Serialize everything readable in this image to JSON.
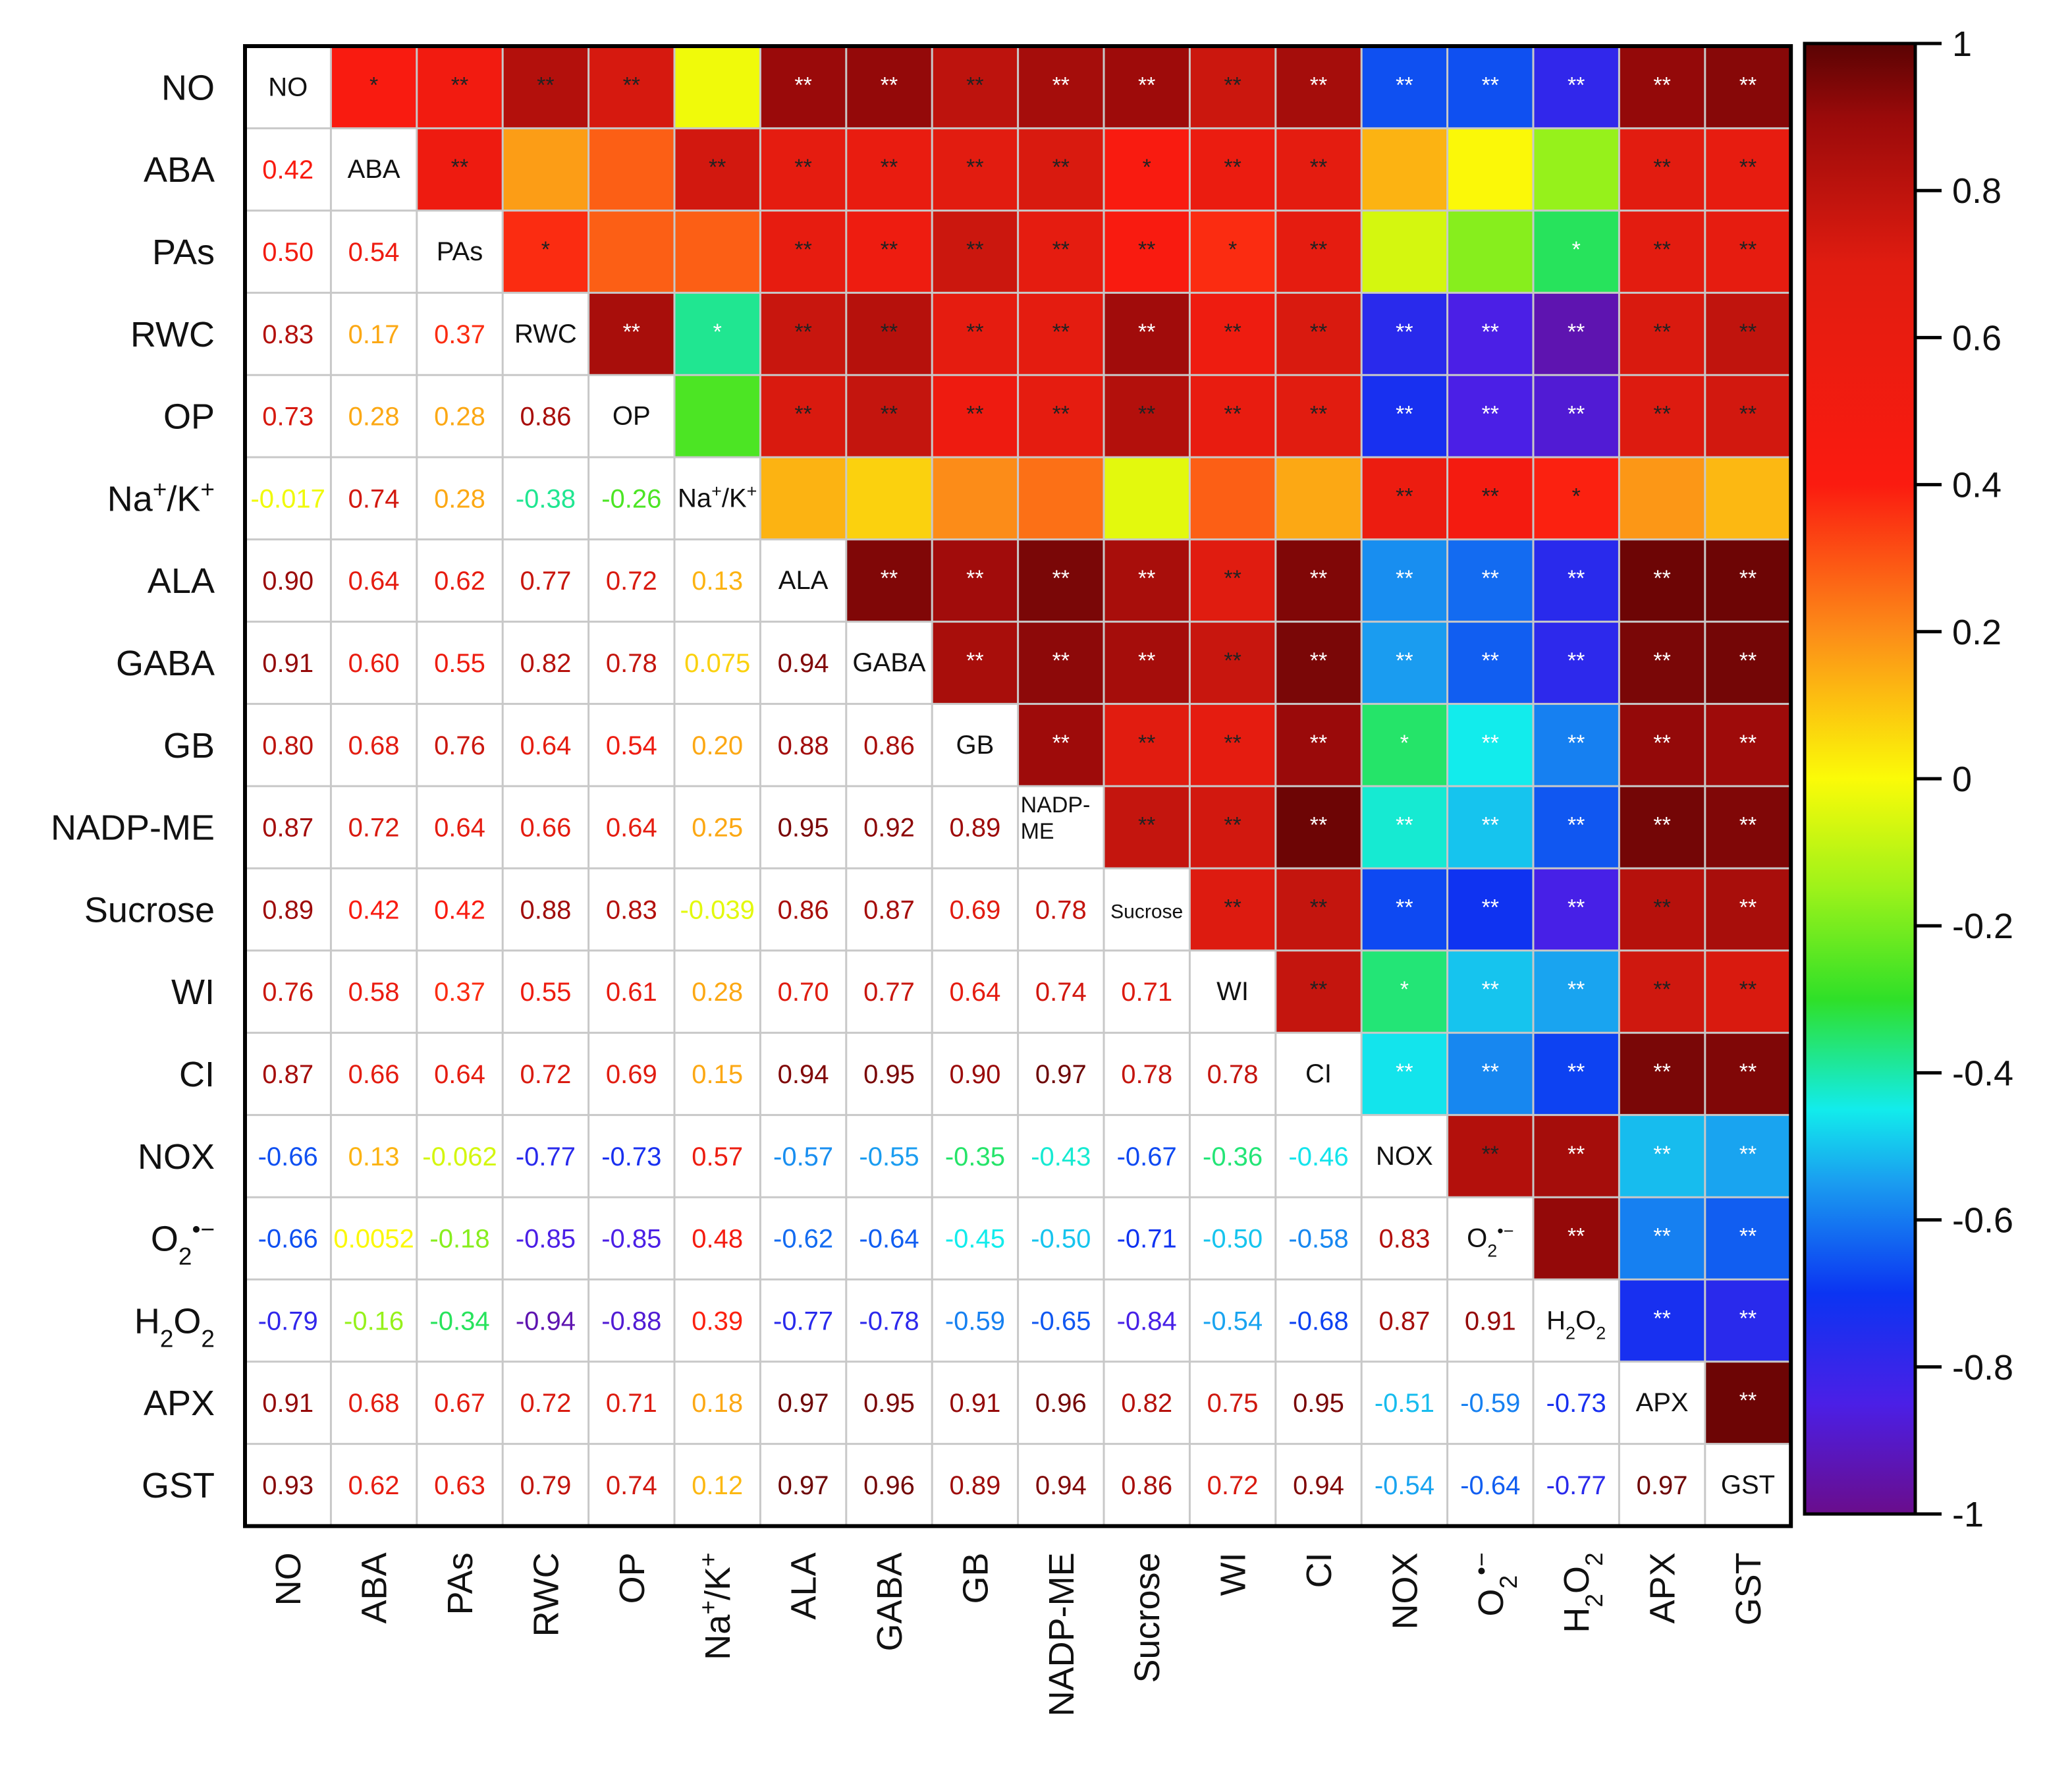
{
  "chart_data": {
    "type": "heatmap",
    "variables": [
      {
        "id": "NO",
        "base": "NO",
        "parts": [
          {
            "t": "NO"
          }
        ]
      },
      {
        "id": "ABA",
        "base": "ABA",
        "parts": [
          {
            "t": "ABA"
          }
        ]
      },
      {
        "id": "PAs",
        "base": "PAs",
        "parts": [
          {
            "t": "PAs"
          }
        ]
      },
      {
        "id": "RWC",
        "base": "RWC",
        "parts": [
          {
            "t": "RWC"
          }
        ]
      },
      {
        "id": "OP",
        "base": "OP",
        "parts": [
          {
            "t": "OP"
          }
        ]
      },
      {
        "id": "Na+/K+",
        "base": "Na",
        "parts": [
          {
            "t": "Na"
          },
          {
            "t": "+",
            "s": "sup"
          },
          {
            "t": "/K"
          },
          {
            "t": "+",
            "s": "sup"
          }
        ]
      },
      {
        "id": "ALA",
        "base": "ALA",
        "parts": [
          {
            "t": "ALA"
          }
        ]
      },
      {
        "id": "GABA",
        "base": "GABA",
        "parts": [
          {
            "t": "GABA"
          }
        ]
      },
      {
        "id": "GB",
        "base": "GB",
        "parts": [
          {
            "t": "GB"
          }
        ]
      },
      {
        "id": "NADP-ME",
        "base": "NADP-ME",
        "parts": [
          {
            "t": "NADP-ME"
          }
        ],
        "diag_lines": [
          "NADP-",
          "ME"
        ]
      },
      {
        "id": "Sucrose",
        "base": "Sucrose",
        "parts": [
          {
            "t": "Sucrose"
          }
        ],
        "diag_small": true
      },
      {
        "id": "WI",
        "base": "WI",
        "parts": [
          {
            "t": "WI"
          }
        ]
      },
      {
        "id": "CI",
        "base": "CI",
        "parts": [
          {
            "t": "CI"
          }
        ]
      },
      {
        "id": "NOX",
        "base": "NOX",
        "parts": [
          {
            "t": "NOX"
          }
        ]
      },
      {
        "id": "O2•−",
        "base": "O",
        "parts": [
          {
            "t": "O"
          },
          {
            "t": "2",
            "s": "sub"
          },
          {
            "t": "•−",
            "s": "sup"
          }
        ]
      },
      {
        "id": "H2O2",
        "base": "H",
        "parts": [
          {
            "t": "H"
          },
          {
            "t": "2",
            "s": "sub"
          },
          {
            "t": "O"
          },
          {
            "t": "2",
            "s": "sub"
          }
        ]
      },
      {
        "id": "APX",
        "base": "APX",
        "parts": [
          {
            "t": "APX"
          }
        ]
      },
      {
        "id": "GST",
        "base": "GST",
        "parts": [
          {
            "t": "GST"
          }
        ]
      }
    ],
    "lower_values": [
      [],
      [
        "0.42"
      ],
      [
        "0.50",
        "0.54"
      ],
      [
        "0.83",
        "0.17",
        "0.37"
      ],
      [
        "0.73",
        "0.28",
        "0.28",
        "0.86"
      ],
      [
        "-0.017",
        "0.74",
        "0.28",
        "-0.38",
        "-0.26"
      ],
      [
        "0.90",
        "0.64",
        "0.62",
        "0.77",
        "0.72",
        "0.13"
      ],
      [
        "0.91",
        "0.60",
        "0.55",
        "0.82",
        "0.78",
        "0.075",
        "0.94"
      ],
      [
        "0.80",
        "0.68",
        "0.76",
        "0.64",
        "0.54",
        "0.20",
        "0.88",
        "0.86"
      ],
      [
        "0.87",
        "0.72",
        "0.64",
        "0.66",
        "0.64",
        "0.25",
        "0.95",
        "0.92",
        "0.89"
      ],
      [
        "0.89",
        "0.42",
        "0.42",
        "0.88",
        "0.83",
        "-0.039",
        "0.86",
        "0.87",
        "0.69",
        "0.78"
      ],
      [
        "0.76",
        "0.58",
        "0.37",
        "0.55",
        "0.61",
        "0.28",
        "0.70",
        "0.77",
        "0.64",
        "0.74",
        "0.71"
      ],
      [
        "0.87",
        "0.66",
        "0.64",
        "0.72",
        "0.69",
        "0.15",
        "0.94",
        "0.95",
        "0.90",
        "0.97",
        "0.78",
        "0.78"
      ],
      [
        "-0.66",
        "0.13",
        "-0.062",
        "-0.77",
        "-0.73",
        "0.57",
        "-0.57",
        "-0.55",
        "-0.35",
        "-0.43",
        "-0.67",
        "-0.36",
        "-0.46"
      ],
      [
        "-0.66",
        "0.0052",
        "-0.18",
        "-0.85",
        "-0.85",
        "0.48",
        "-0.62",
        "-0.64",
        "-0.45",
        "-0.50",
        "-0.71",
        "-0.50",
        "-0.58",
        "0.83"
      ],
      [
        "-0.79",
        "-0.16",
        "-0.34",
        "-0.94",
        "-0.88",
        "0.39",
        "-0.77",
        "-0.78",
        "-0.59",
        "-0.65",
        "-0.84",
        "-0.54",
        "-0.68",
        "0.87",
        "0.91"
      ],
      [
        "0.91",
        "0.68",
        "0.67",
        "0.72",
        "0.71",
        "0.18",
        "0.97",
        "0.95",
        "0.91",
        "0.96",
        "0.82",
        "0.75",
        "0.95",
        "-0.51",
        "-0.59",
        "-0.73"
      ],
      [
        "0.93",
        "0.62",
        "0.63",
        "0.79",
        "0.74",
        "0.12",
        "0.97",
        "0.96",
        "0.89",
        "0.94",
        "0.86",
        "0.72",
        "0.94",
        "-0.54",
        "-0.64",
        "-0.77",
        "0.97"
      ]
    ],
    "significance": [
      [
        "",
        "*",
        "**",
        "**",
        "**",
        "",
        "**",
        "**",
        "**",
        "**",
        "**",
        "**",
        "**",
        "**",
        "**",
        "**",
        "**",
        "**"
      ],
      [
        "",
        "",
        "**",
        "",
        "",
        "**",
        "**",
        "**",
        "**",
        "**",
        "*",
        "**",
        "**",
        "",
        "",
        "",
        "**",
        "**"
      ],
      [
        "",
        "",
        "",
        "*",
        "",
        "",
        "**",
        "**",
        "**",
        "**",
        "**",
        "*",
        "**",
        "",
        "",
        "*",
        "**",
        "**"
      ],
      [
        "",
        "",
        "",
        "",
        "**",
        "*",
        "**",
        "**",
        "**",
        "**",
        "**",
        "**",
        "**",
        "**",
        "**",
        "**",
        "**",
        "**"
      ],
      [
        "",
        "",
        "",
        "",
        "",
        "",
        "**",
        "**",
        "**",
        "**",
        "**",
        "**",
        "**",
        "**",
        "**",
        "**",
        "**",
        "**"
      ],
      [
        "",
        "",
        "",
        "",
        "",
        "",
        "",
        "",
        "",
        "",
        "",
        "",
        "",
        "**",
        "**",
        "*",
        "",
        ""
      ],
      [
        "",
        "",
        "",
        "",
        "",
        "",
        "",
        "**",
        "**",
        "**",
        "**",
        "**",
        "**",
        "**",
        "**",
        "**",
        "**",
        "**"
      ],
      [
        "",
        "",
        "",
        "",
        "",
        "",
        "",
        "",
        "**",
        "**",
        "**",
        "**",
        "**",
        "**",
        "**",
        "**",
        "**",
        "**"
      ],
      [
        "",
        "",
        "",
        "",
        "",
        "",
        "",
        "",
        "",
        "**",
        "**",
        "**",
        "**",
        "*",
        "**",
        "**",
        "**",
        "**"
      ],
      [
        "",
        "",
        "",
        "",
        "",
        "",
        "",
        "",
        "",
        "",
        "**",
        "**",
        "**",
        "**",
        "**",
        "**",
        "**",
        "**"
      ],
      [
        "",
        "",
        "",
        "",
        "",
        "",
        "",
        "",
        "",
        "",
        "",
        "**",
        "**",
        "**",
        "**",
        "**",
        "**",
        "**"
      ],
      [
        "",
        "",
        "",
        "",
        "",
        "",
        "",
        "",
        "",
        "",
        "",
        "",
        "**",
        "*",
        "**",
        "**",
        "**",
        "**"
      ],
      [
        "",
        "",
        "",
        "",
        "",
        "",
        "",
        "",
        "",
        "",
        "",
        "",
        "",
        "**",
        "**",
        "**",
        "**",
        "**"
      ],
      [
        "",
        "",
        "",
        "",
        "",
        "",
        "",
        "",
        "",
        "",
        "",
        "",
        "",
        "",
        "**",
        "**",
        "**",
        "**"
      ],
      [
        "",
        "",
        "",
        "",
        "",
        "",
        "",
        "",
        "",
        "",
        "",
        "",
        "",
        "",
        "",
        "**",
        "**",
        "**"
      ],
      [
        "",
        "",
        "",
        "",
        "",
        "",
        "",
        "",
        "",
        "",
        "",
        "",
        "",
        "",
        "",
        "",
        "**",
        "**"
      ],
      [
        "",
        "",
        "",
        "",
        "",
        "",
        "",
        "",
        "",
        "",
        "",
        "",
        "",
        "",
        "",
        "",
        "",
        "**"
      ],
      [
        "",
        "",
        "",
        "",
        "",
        "",
        "",
        "",
        "",
        "",
        "",
        "",
        "",
        "",
        "",
        "",
        "",
        ""
      ]
    ],
    "colorbar": {
      "range": [
        -1,
        1
      ],
      "ticks": [
        1,
        0.8,
        0.6,
        0.4,
        0.2,
        0,
        -0.2,
        -0.4,
        -0.6,
        -0.8,
        -1
      ],
      "tick_labels": [
        "1",
        "0.8",
        "0.6",
        "0.4",
        "0.2",
        "0",
        "-0.2",
        "-0.4",
        "-0.6",
        "-0.8",
        "-1"
      ],
      "stops": [
        {
          "v": -1.0,
          "c": "#6a0d8c"
        },
        {
          "v": -0.85,
          "c": "#4b1fe6"
        },
        {
          "v": -0.7,
          "c": "#0b34f2"
        },
        {
          "v": -0.55,
          "c": "#1a9cf0"
        },
        {
          "v": -0.45,
          "c": "#12ecec"
        },
        {
          "v": -0.3,
          "c": "#2fe028"
        },
        {
          "v": -0.15,
          "c": "#9df21a"
        },
        {
          "v": 0.0,
          "c": "#fbfb08"
        },
        {
          "v": 0.2,
          "c": "#fc8c18"
        },
        {
          "v": 0.4,
          "c": "#fb1b10"
        },
        {
          "v": 0.7,
          "c": "#e01c10"
        },
        {
          "v": 0.9,
          "c": "#9a0a0a"
        },
        {
          "v": 1.0,
          "c": "#5a0303"
        }
      ]
    }
  }
}
